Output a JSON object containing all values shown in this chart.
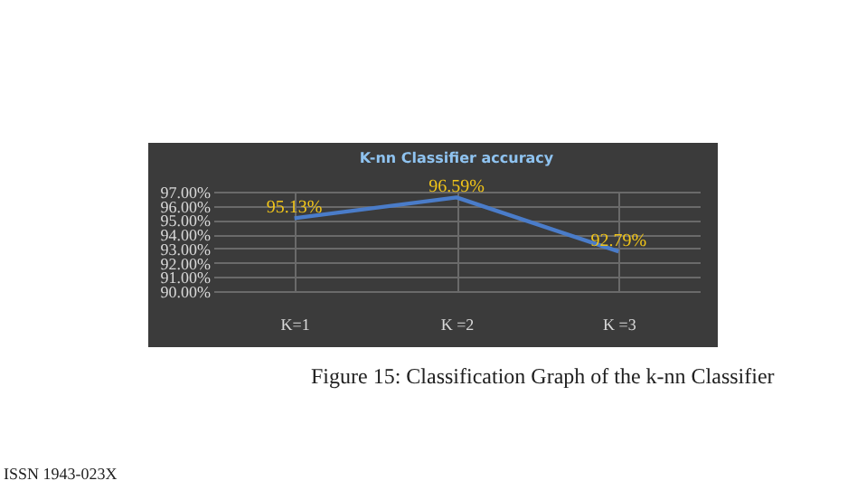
{
  "chart_data": {
    "type": "line",
    "title": "K-nn Classifier accuracy",
    "categories": [
      "K=1",
      "K =2",
      "K =3"
    ],
    "series": [
      {
        "color": "#4a7cc9",
        "values": [
          95.13,
          96.59,
          92.79
        ],
        "value_labels": [
          "95.13%",
          "96.59%",
          "92.79%"
        ]
      }
    ],
    "ylim": [
      90,
      97
    ],
    "yticks": [
      {
        "value": 90,
        "label": "90.00%"
      },
      {
        "value": 91,
        "label": "91.00%"
      },
      {
        "value": 92,
        "label": "92.00%"
      },
      {
        "value": 93,
        "label": "93.00%"
      },
      {
        "value": 94,
        "label": "94.00%"
      },
      {
        "value": 95,
        "label": "95.00%"
      },
      {
        "value": 96,
        "label": "96.00%"
      },
      {
        "value": 97,
        "label": "97.00%"
      }
    ],
    "grid": true,
    "marker": "none",
    "line_style": "solid",
    "annotations": [
      "Figure 15: Classification Graph of the k-nn Classifier",
      "ISSN 1943-023X"
    ]
  }
}
